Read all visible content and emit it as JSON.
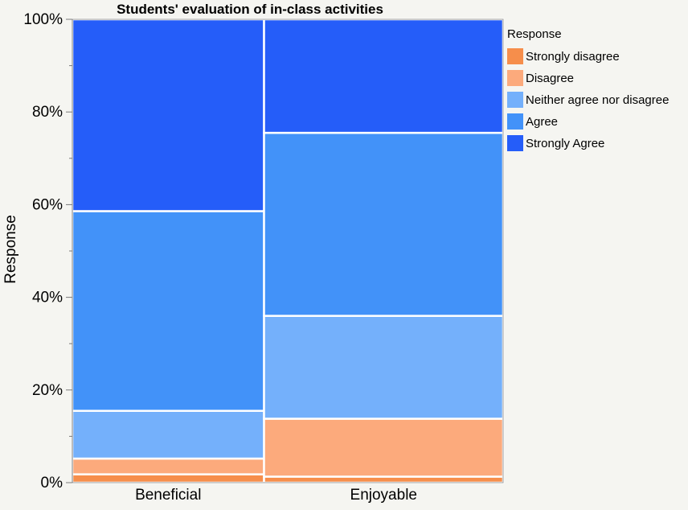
{
  "chart_data": {
    "type": "bar",
    "subtype": "stacked-percent-mosaic",
    "title": "Students' evaluation of in-class activities",
    "xlabel": "",
    "ylabel": "Response",
    "ylim": [
      0,
      100
    ],
    "yticks": [
      "0%",
      "20%",
      "40%",
      "60%",
      "80%",
      "100%"
    ],
    "categories": [
      "Beneficial",
      "Enjoyable"
    ],
    "category_widths": [
      0.445,
      0.555
    ],
    "series": [
      {
        "name": "Strongly disagree",
        "color": "#f68e4b",
        "values": [
          1.8,
          1.3
        ]
      },
      {
        "name": "Disagree",
        "color": "#fcaa7c",
        "values": [
          3.4,
          12.5
        ]
      },
      {
        "name": "Neither agree nor disagree",
        "color": "#74b0fb",
        "values": [
          10.3,
          22.2
        ]
      },
      {
        "name": "Agree",
        "color": "#4292f9",
        "values": [
          43.1,
          39.5
        ]
      },
      {
        "name": "Strongly Agree",
        "color": "#255df9",
        "values": [
          41.4,
          24.5
        ]
      }
    ],
    "legend": {
      "title": "Response",
      "position": "right"
    },
    "grid": false
  }
}
